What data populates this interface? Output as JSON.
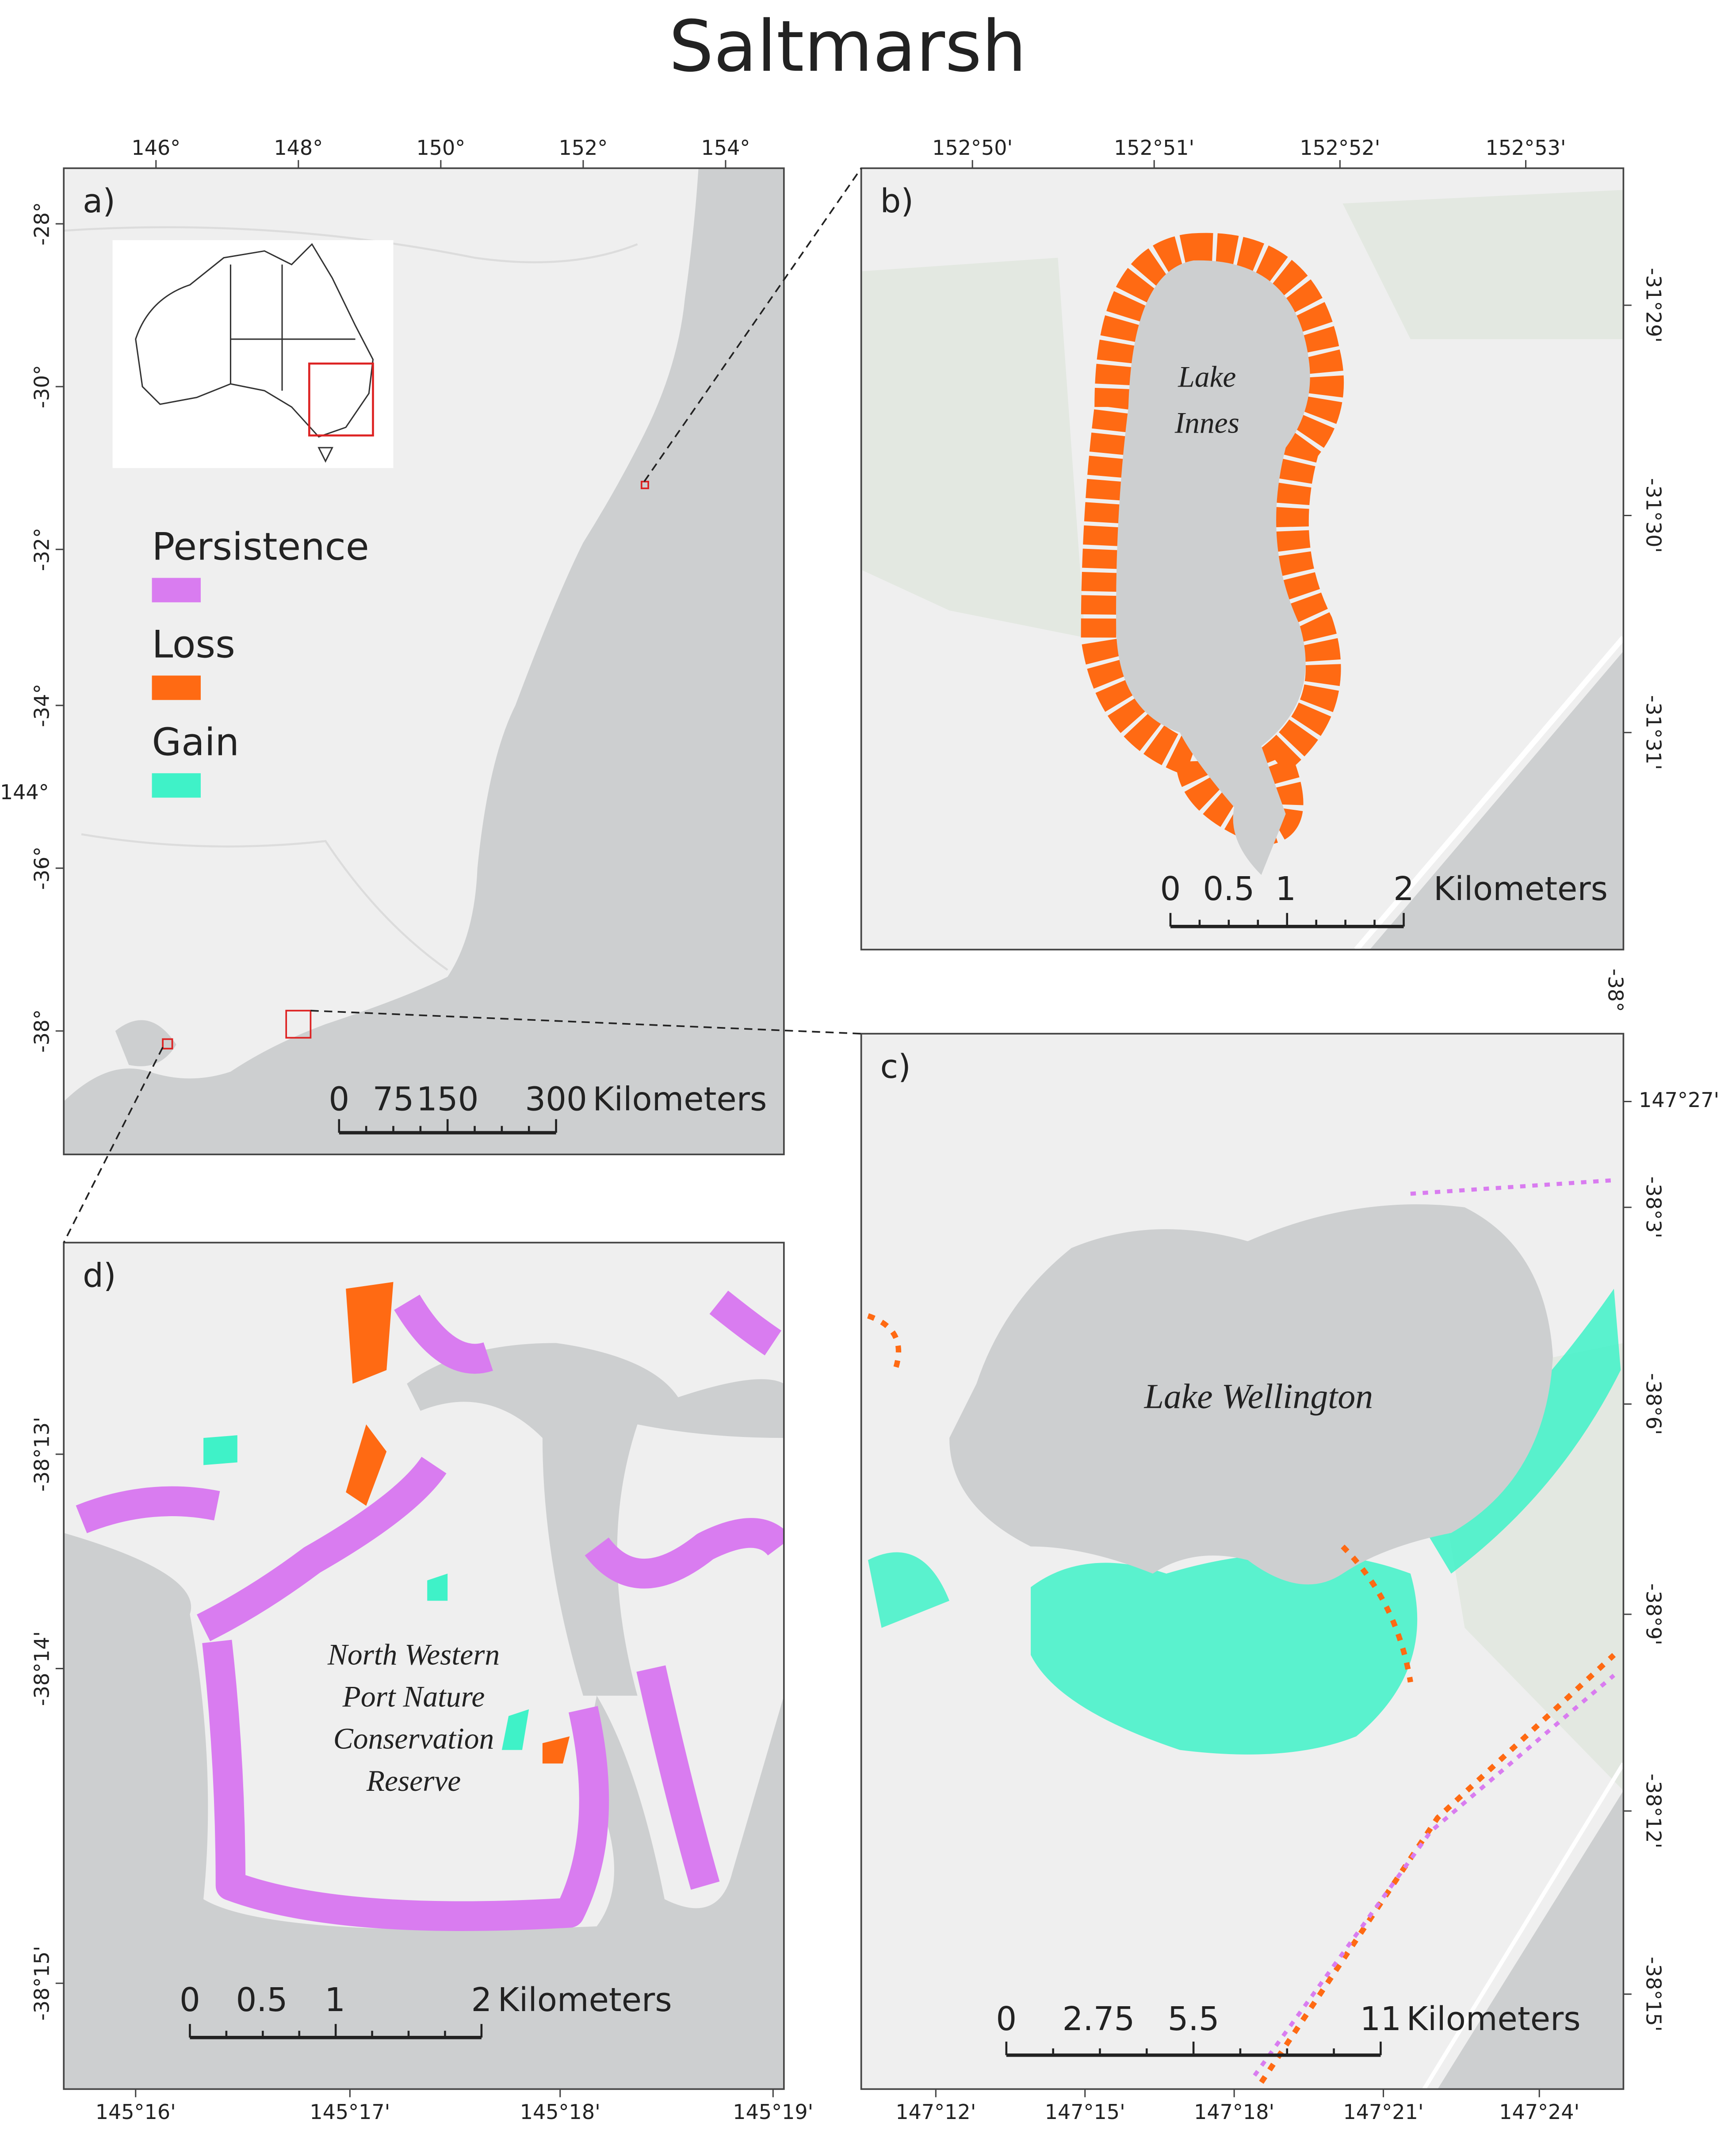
{
  "title": "Saltmarsh",
  "legend": [
    {
      "name": "Persistence",
      "color": "#d97cf0"
    },
    {
      "name": "Loss",
      "color": "#ff6a13"
    },
    {
      "name": "Gain",
      "color": "#3ff2c8"
    }
  ],
  "panels": [
    {
      "label": "a)",
      "top_ticks": [
        "146°",
        "148°",
        "150°",
        "152°",
        "154°"
      ],
      "left_ticks": [
        "-28°",
        "-30°",
        "-32°",
        "-34°",
        "-36°",
        "-38°"
      ],
      "extra_tick": "144°",
      "scale_bar": {
        "ticks": [
          "0",
          "75",
          "150",
          "300"
        ],
        "unit": "Kilometers"
      }
    },
    {
      "label": "b)",
      "top_ticks": [
        "152°50'",
        "152°51'",
        "152°52'",
        "152°53'"
      ],
      "right_ticks": [
        "-31°29'",
        "-31°30'",
        "-31°31'"
      ],
      "extra_tick": "-38°",
      "place_name": [
        "Lake",
        "Innes"
      ],
      "scale_bar": {
        "ticks": [
          "0",
          "0.5",
          "1",
          "2"
        ],
        "unit": "Kilometers"
      }
    },
    {
      "label": "c)",
      "right_ticks": [
        "147°27'",
        "-38°3'",
        "-38°6'",
        "-38°9'",
        "-38°12'",
        "-38°15'"
      ],
      "bottom_ticks": [
        "147°12'",
        "147°15'",
        "147°18'",
        "147°21'",
        "147°24'"
      ],
      "place_name": [
        "Lake Wellington"
      ],
      "scale_bar": {
        "ticks": [
          "0",
          "2.75",
          "5.5",
          "11"
        ],
        "unit": "Kilometers"
      }
    },
    {
      "label": "d)",
      "left_ticks": [
        "-38°13'",
        "-38°14'",
        "-38°15'"
      ],
      "bottom_ticks": [
        "145°16'",
        "145°17'",
        "145°18'",
        "145°19'"
      ],
      "place_name": [
        "North Western",
        "Port Nature",
        "Conservation",
        "Reserve"
      ],
      "scale_bar": {
        "ticks": [
          "0",
          "0.5",
          "1",
          "2"
        ],
        "unit": "Kilometers"
      }
    }
  ]
}
